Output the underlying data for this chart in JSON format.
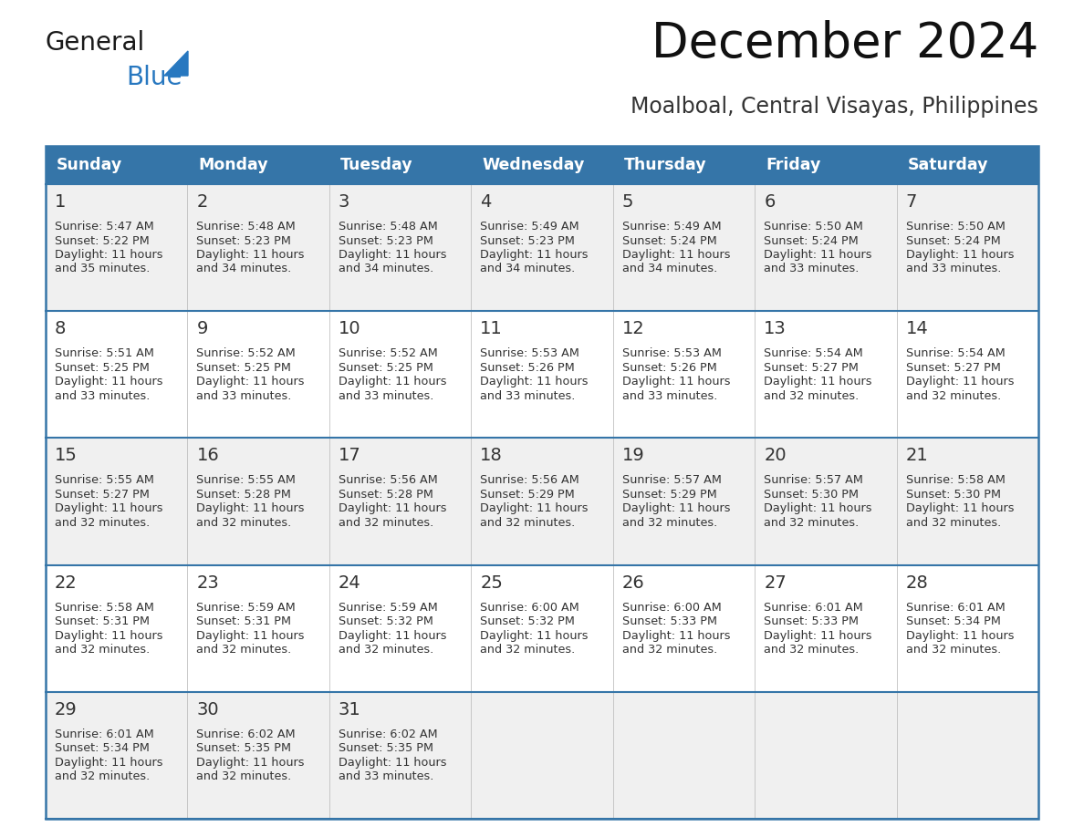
{
  "title": "December 2024",
  "subtitle": "Moalboal, Central Visayas, Philippines",
  "header_bg": "#3575a8",
  "header_text": "#ffffff",
  "days_of_week": [
    "Sunday",
    "Monday",
    "Tuesday",
    "Wednesday",
    "Thursday",
    "Friday",
    "Saturday"
  ],
  "row_bg_odd": "#f0f0f0",
  "row_bg_even": "#ffffff",
  "cell_text_color": "#333333",
  "border_color": "#3575a8",
  "logo_general_color": "#1a1a1a",
  "logo_blue_color": "#2878c0",
  "title_fontsize": 38,
  "subtitle_fontsize": 17,
  "header_fontsize": 12.5,
  "day_num_fontsize": 14,
  "cell_fontsize": 9.2,
  "calendar_data": [
    [
      {
        "day": 1,
        "sunrise": "5:47 AM",
        "sunset": "5:22 PM",
        "daylight_l1": "Daylight: 11 hours",
        "daylight_l2": "and 35 minutes."
      },
      {
        "day": 2,
        "sunrise": "5:48 AM",
        "sunset": "5:23 PM",
        "daylight_l1": "Daylight: 11 hours",
        "daylight_l2": "and 34 minutes."
      },
      {
        "day": 3,
        "sunrise": "5:48 AM",
        "sunset": "5:23 PM",
        "daylight_l1": "Daylight: 11 hours",
        "daylight_l2": "and 34 minutes."
      },
      {
        "day": 4,
        "sunrise": "5:49 AM",
        "sunset": "5:23 PM",
        "daylight_l1": "Daylight: 11 hours",
        "daylight_l2": "and 34 minutes."
      },
      {
        "day": 5,
        "sunrise": "5:49 AM",
        "sunset": "5:24 PM",
        "daylight_l1": "Daylight: 11 hours",
        "daylight_l2": "and 34 minutes."
      },
      {
        "day": 6,
        "sunrise": "5:50 AM",
        "sunset": "5:24 PM",
        "daylight_l1": "Daylight: 11 hours",
        "daylight_l2": "and 33 minutes."
      },
      {
        "day": 7,
        "sunrise": "5:50 AM",
        "sunset": "5:24 PM",
        "daylight_l1": "Daylight: 11 hours",
        "daylight_l2": "and 33 minutes."
      }
    ],
    [
      {
        "day": 8,
        "sunrise": "5:51 AM",
        "sunset": "5:25 PM",
        "daylight_l1": "Daylight: 11 hours",
        "daylight_l2": "and 33 minutes."
      },
      {
        "day": 9,
        "sunrise": "5:52 AM",
        "sunset": "5:25 PM",
        "daylight_l1": "Daylight: 11 hours",
        "daylight_l2": "and 33 minutes."
      },
      {
        "day": 10,
        "sunrise": "5:52 AM",
        "sunset": "5:25 PM",
        "daylight_l1": "Daylight: 11 hours",
        "daylight_l2": "and 33 minutes."
      },
      {
        "day": 11,
        "sunrise": "5:53 AM",
        "sunset": "5:26 PM",
        "daylight_l1": "Daylight: 11 hours",
        "daylight_l2": "and 33 minutes."
      },
      {
        "day": 12,
        "sunrise": "5:53 AM",
        "sunset": "5:26 PM",
        "daylight_l1": "Daylight: 11 hours",
        "daylight_l2": "and 33 minutes."
      },
      {
        "day": 13,
        "sunrise": "5:54 AM",
        "sunset": "5:27 PM",
        "daylight_l1": "Daylight: 11 hours",
        "daylight_l2": "and 32 minutes."
      },
      {
        "day": 14,
        "sunrise": "5:54 AM",
        "sunset": "5:27 PM",
        "daylight_l1": "Daylight: 11 hours",
        "daylight_l2": "and 32 minutes."
      }
    ],
    [
      {
        "day": 15,
        "sunrise": "5:55 AM",
        "sunset": "5:27 PM",
        "daylight_l1": "Daylight: 11 hours",
        "daylight_l2": "and 32 minutes."
      },
      {
        "day": 16,
        "sunrise": "5:55 AM",
        "sunset": "5:28 PM",
        "daylight_l1": "Daylight: 11 hours",
        "daylight_l2": "and 32 minutes."
      },
      {
        "day": 17,
        "sunrise": "5:56 AM",
        "sunset": "5:28 PM",
        "daylight_l1": "Daylight: 11 hours",
        "daylight_l2": "and 32 minutes."
      },
      {
        "day": 18,
        "sunrise": "5:56 AM",
        "sunset": "5:29 PM",
        "daylight_l1": "Daylight: 11 hours",
        "daylight_l2": "and 32 minutes."
      },
      {
        "day": 19,
        "sunrise": "5:57 AM",
        "sunset": "5:29 PM",
        "daylight_l1": "Daylight: 11 hours",
        "daylight_l2": "and 32 minutes."
      },
      {
        "day": 20,
        "sunrise": "5:57 AM",
        "sunset": "5:30 PM",
        "daylight_l1": "Daylight: 11 hours",
        "daylight_l2": "and 32 minutes."
      },
      {
        "day": 21,
        "sunrise": "5:58 AM",
        "sunset": "5:30 PM",
        "daylight_l1": "Daylight: 11 hours",
        "daylight_l2": "and 32 minutes."
      }
    ],
    [
      {
        "day": 22,
        "sunrise": "5:58 AM",
        "sunset": "5:31 PM",
        "daylight_l1": "Daylight: 11 hours",
        "daylight_l2": "and 32 minutes."
      },
      {
        "day": 23,
        "sunrise": "5:59 AM",
        "sunset": "5:31 PM",
        "daylight_l1": "Daylight: 11 hours",
        "daylight_l2": "and 32 minutes."
      },
      {
        "day": 24,
        "sunrise": "5:59 AM",
        "sunset": "5:32 PM",
        "daylight_l1": "Daylight: 11 hours",
        "daylight_l2": "and 32 minutes."
      },
      {
        "day": 25,
        "sunrise": "6:00 AM",
        "sunset": "5:32 PM",
        "daylight_l1": "Daylight: 11 hours",
        "daylight_l2": "and 32 minutes."
      },
      {
        "day": 26,
        "sunrise": "6:00 AM",
        "sunset": "5:33 PM",
        "daylight_l1": "Daylight: 11 hours",
        "daylight_l2": "and 32 minutes."
      },
      {
        "day": 27,
        "sunrise": "6:01 AM",
        "sunset": "5:33 PM",
        "daylight_l1": "Daylight: 11 hours",
        "daylight_l2": "and 32 minutes."
      },
      {
        "day": 28,
        "sunrise": "6:01 AM",
        "sunset": "5:34 PM",
        "daylight_l1": "Daylight: 11 hours",
        "daylight_l2": "and 32 minutes."
      }
    ],
    [
      {
        "day": 29,
        "sunrise": "6:01 AM",
        "sunset": "5:34 PM",
        "daylight_l1": "Daylight: 11 hours",
        "daylight_l2": "and 32 minutes."
      },
      {
        "day": 30,
        "sunrise": "6:02 AM",
        "sunset": "5:35 PM",
        "daylight_l1": "Daylight: 11 hours",
        "daylight_l2": "and 32 minutes."
      },
      {
        "day": 31,
        "sunrise": "6:02 AM",
        "sunset": "5:35 PM",
        "daylight_l1": "Daylight: 11 hours",
        "daylight_l2": "and 33 minutes."
      },
      null,
      null,
      null,
      null
    ]
  ]
}
